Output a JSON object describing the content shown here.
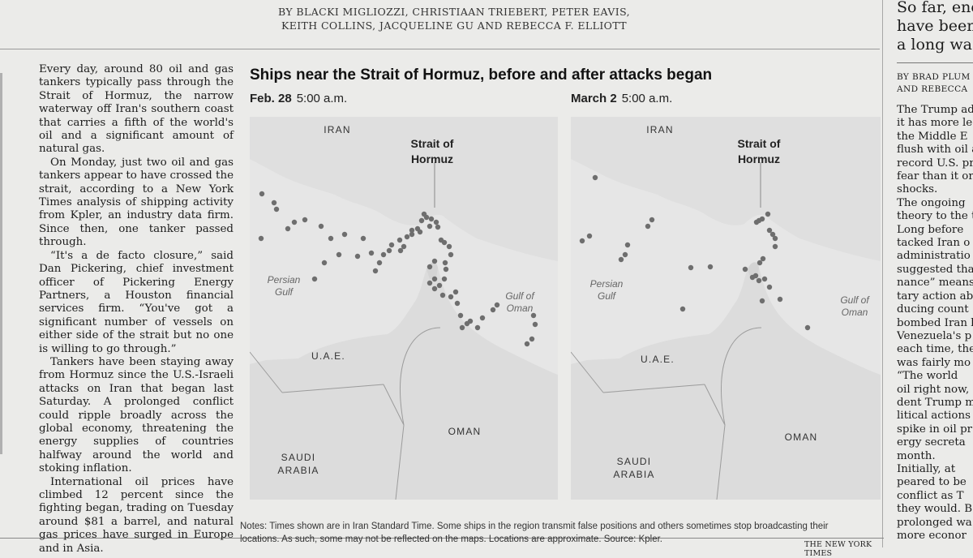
{
  "byline": {
    "line1": "BY BLACKI MIGLIOZZI, CHRISTIAAN TRIEBERT, PETER EAVIS,",
    "line2": "KEITH COLLINS, JACQUELINE GU AND REBECCA F. ELLIOTT"
  },
  "article": {
    "paragraphs": [
      "Every day, around 80 oil and gas tankers typically pass through the Strait of Hormuz, the narrow waterway off Iran's southern coast that carries a fifth of the world's oil and a significant amount of natural gas.",
      "On Monday, just two oil and gas tankers appear to have crossed the strait, according to a New York Times analysis of shipping activity from Kpler, an industry data firm. Since then, one tanker passed through.",
      "“It's a de facto closure,” said Dan Pickering, chief investment officer of Pickering Energy Partners, a Houston financial services firm. “You've got a significant number of vessels on either side of the strait but no one is willing to go through.”",
      "Tankers have been staying away from Hormuz since the U.S.-Israeli attacks on Iran that began last Saturday. A prolonged conflict could ripple broadly across the global economy, threatening the energy supplies of countries halfway around the world and stoking inflation.",
      "International oil prices have climbed 12 percent since the fighting began, trading on Tuesday around $81 a barrel, and natural gas prices have surged in Europe and in Asia."
    ]
  },
  "graphic": {
    "title": "Ships near the Strait of Hormuz, before and after attacks began",
    "panels": [
      {
        "date": "Feb. 28",
        "time": "5:00 a.m.",
        "labels": {
          "iran": "IRAN",
          "strait_line1": "Strait of",
          "strait_line2": "Hormuz",
          "gulf_line1": "Persian",
          "gulf_line2": "Gulf",
          "oman_gulf_line1": "Gulf of",
          "oman_gulf_line2": "Oman",
          "uae": "U.A.E.",
          "oman": "OMAN",
          "saudi_line1": "SAUDI",
          "saudi_line2": "ARABIA"
        }
      },
      {
        "date": "March 2",
        "time": "5:00 a.m.",
        "labels": {
          "iran": "IRAN",
          "strait_line1": "Strait of",
          "strait_line2": "Hormuz",
          "gulf_line1": "Persian",
          "gulf_line2": "Gulf",
          "oman_gulf_line1": "Gulf of",
          "oman_gulf_line2": "Oman",
          "uae": "U.A.E.",
          "oman": "OMAN",
          "saudi_line1": "SAUDI",
          "saudi_line2": "ARABIA"
        }
      }
    ],
    "notes_line1": "Notes: Times shown are in Iran Standard Time. Some ships in the region transmit false positions and others sometimes stop broadcasting their",
    "notes_line2": "locations. As such, some may not be reflected on the maps. Locations are approximate. Source: Kpler.",
    "credit": "THE NEW YORK TIMES"
  },
  "right_column": {
    "headline_lines": [
      "So far, ene",
      "have been",
      "a long wa"
    ],
    "byline_lines": [
      "BY BRAD PLUM",
      "AND REBECCA"
    ],
    "body_lines": [
      "The Trump adm",
      "it has more lee",
      "the Middle E",
      "flush with oil a",
      "record U.S. pr",
      "fear than it or",
      "shocks.",
      "The ongoing",
      "theory to the t",
      "Long before",
      "tacked Iran o",
      "administratio",
      "suggested tha",
      "nance” means",
      "tary action ab",
      "ducing count",
      "bombed Iran l",
      "Venezuela's p",
      "each time, the",
      "was fairly mo",
      "“The world",
      "oil right now,",
      "dent Trump m",
      "litical actions",
      "spike in oil pr",
      "ergy secreta",
      "month.",
      "Initially, at",
      "peared to be",
      "conflict as T",
      "they would. B",
      "prolonged wa",
      "more econor"
    ]
  },
  "colors": {
    "page": "#ebebe9",
    "map_water": "#e6e6e6",
    "map_land": "#dcdcdc",
    "ship_dot": "#6e6e6e"
  }
}
